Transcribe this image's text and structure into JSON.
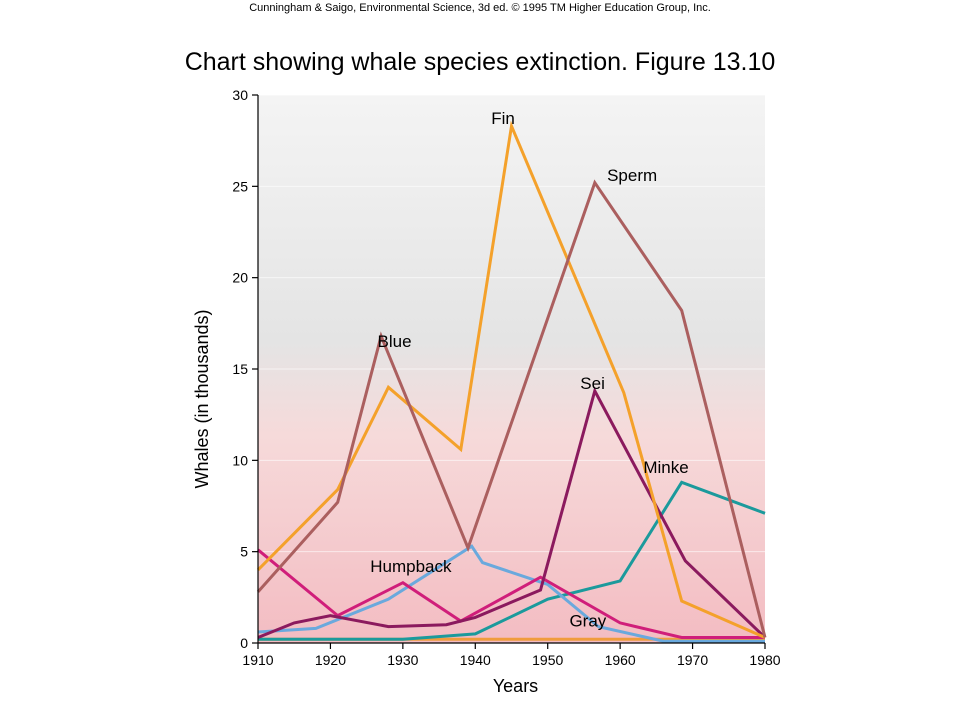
{
  "header": {
    "credit": "Cunningham & Saigo, Environmental Science, 3d ed. © 1995 TM Higher Education Group, Inc.",
    "title": "Chart showing whale species extinction. Figure 13.10"
  },
  "chart_data": {
    "type": "line",
    "xlabel": "Years",
    "ylabel": "Whales (in thousands)",
    "xlim": [
      1910,
      1980
    ],
    "ylim": [
      0,
      30
    ],
    "xticks": [
      1910,
      1920,
      1930,
      1940,
      1950,
      1960,
      1970,
      1980
    ],
    "yticks": [
      0,
      5,
      10,
      15,
      20,
      25,
      30
    ],
    "series": [
      {
        "name": "Blue",
        "color": "#ab5f5f",
        "label_anchor": [
          1926.5,
          16.2
        ],
        "points": [
          [
            1910,
            2.8
          ],
          [
            1921,
            7.7
          ],
          [
            1927,
            16.8
          ],
          [
            1939,
            5.2
          ],
          [
            1956.5,
            25.2
          ],
          [
            1968.5,
            18.2
          ],
          [
            1980,
            0.3
          ]
        ]
      },
      {
        "name": "Fin",
        "color": "#f4a12b",
        "label_anchor": [
          1942.2,
          28.4
        ],
        "points": [
          [
            1910,
            4.0
          ],
          [
            1921,
            8.4
          ],
          [
            1928,
            14.0
          ],
          [
            1938,
            10.6
          ],
          [
            1945,
            28.3
          ],
          [
            1960.5,
            13.7
          ],
          [
            1968.5,
            2.3
          ],
          [
            1980,
            0.3
          ]
        ]
      },
      {
        "name": "Sperm",
        "color": "#ab5f5f",
        "label_anchor": [
          1958.2,
          25.3
        ],
        "points": []
      },
      {
        "name": "Sei",
        "color": "#8b1a5e",
        "label_anchor": [
          1954.5,
          13.9
        ],
        "points": [
          [
            1910,
            0.3
          ],
          [
            1915,
            1.1
          ],
          [
            1920,
            1.5
          ],
          [
            1928,
            0.9
          ],
          [
            1936,
            1.0
          ],
          [
            1940,
            1.4
          ],
          [
            1949,
            2.9
          ],
          [
            1956.5,
            13.8
          ],
          [
            1969,
            4.5
          ],
          [
            1980,
            0.3
          ]
        ]
      },
      {
        "name": "Minke",
        "color": "#1b9a9c",
        "label_anchor": [
          1963.2,
          9.3
        ],
        "points": [
          [
            1910,
            0.2
          ],
          [
            1930,
            0.2
          ],
          [
            1940,
            0.5
          ],
          [
            1950,
            2.4
          ],
          [
            1960,
            3.4
          ],
          [
            1968.5,
            8.8
          ],
          [
            1980,
            7.1
          ]
        ]
      },
      {
        "name": "Humpback",
        "color": "#d01e7a",
        "label_anchor": [
          1925.5,
          3.9
        ],
        "points": [
          [
            1910,
            5.1
          ],
          [
            1921,
            1.5
          ],
          [
            1930,
            3.3
          ],
          [
            1938,
            1.2
          ],
          [
            1949,
            3.6
          ],
          [
            1960,
            1.1
          ],
          [
            1968.5,
            0.3
          ],
          [
            1980,
            0.3
          ]
        ]
      },
      {
        "name": "Gray",
        "color": "#f09c3c",
        "label_anchor": [
          1953,
          0.9
        ],
        "points": [
          [
            1910,
            0.2
          ],
          [
            1980,
            0.2
          ]
        ]
      },
      {
        "name": "",
        "color": "#6aa9dd",
        "points": [
          [
            1910,
            0.6
          ],
          [
            1918,
            0.8
          ],
          [
            1928,
            2.4
          ],
          [
            1939.5,
            5.3
          ],
          [
            1941,
            4.4
          ],
          [
            1950,
            3.2
          ],
          [
            1957,
            0.9
          ],
          [
            1966,
            0.1
          ],
          [
            1980,
            0.1
          ]
        ]
      }
    ]
  }
}
